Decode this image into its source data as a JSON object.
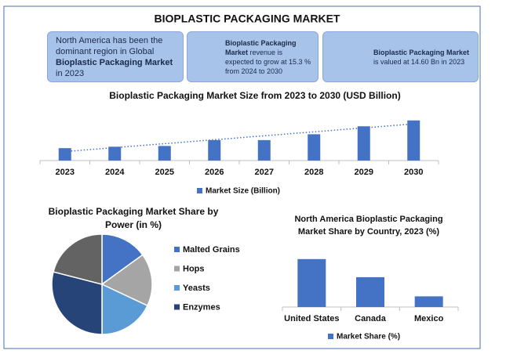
{
  "header": {
    "title": "BIOPLASTIC PACKAGING MARKET"
  },
  "info_boxes": [
    {
      "parts": [
        {
          "text": "North America has been the dominant region in Global "
        },
        {
          "text": "Bioplastic Packaging Market",
          "bold": true
        },
        {
          "text": " in 2023"
        }
      ]
    },
    {
      "parts": [
        {
          "text": "Bioplastic Packaging Market",
          "bold": true
        },
        {
          "text": " revenue is expected to grow at 15.3 % from 2024 to 2030"
        }
      ]
    },
    {
      "parts": [
        {
          "text": "Bioplastic Packaging Market",
          "bold": true
        },
        {
          "text": " is valued at 14.60 Bn in 2023"
        }
      ]
    }
  ],
  "chart_data": [
    {
      "type": "bar",
      "title": "Bioplastic Packaging Market Size from 2023 to 2030 (USD Billion)",
      "categories": [
        "2023",
        "2024",
        "2025",
        "2026",
        "2027",
        "2028",
        "2029",
        "2030"
      ],
      "series": [
        {
          "name": "Market Size (Billion)",
          "color": "#4472c4",
          "values": [
            14.6,
            16.3,
            17.2,
            24.1,
            24.1,
            31,
            40.4,
            47.3
          ]
        }
      ],
      "ylim": [
        0,
        60
      ],
      "trendline": true,
      "legend": "bottom"
    },
    {
      "type": "pie",
      "title": "Bioplastic Packaging Market Share by Power (in %)",
      "categories": [
        "Malted Grains",
        "Hops",
        "Yeasts",
        "Enzymes",
        null
      ],
      "values": [
        15,
        17,
        18,
        29,
        21
      ],
      "colors": [
        "#4472c4",
        "#a5a5a5",
        "#5b9bd5",
        "#264478",
        "#636363"
      ],
      "legend": "right"
    },
    {
      "type": "bar",
      "title": "North America Bioplastic Packaging Market  Share by Country, 2023 (%)",
      "categories": [
        "United States",
        "Canada",
        "Mexico"
      ],
      "series": [
        {
          "name": "Market Share (%)",
          "color": "#4472c4",
          "values": [
            45,
            28,
            10
          ]
        }
      ],
      "ylim": [
        0,
        50
      ],
      "legend": "bottom"
    }
  ]
}
